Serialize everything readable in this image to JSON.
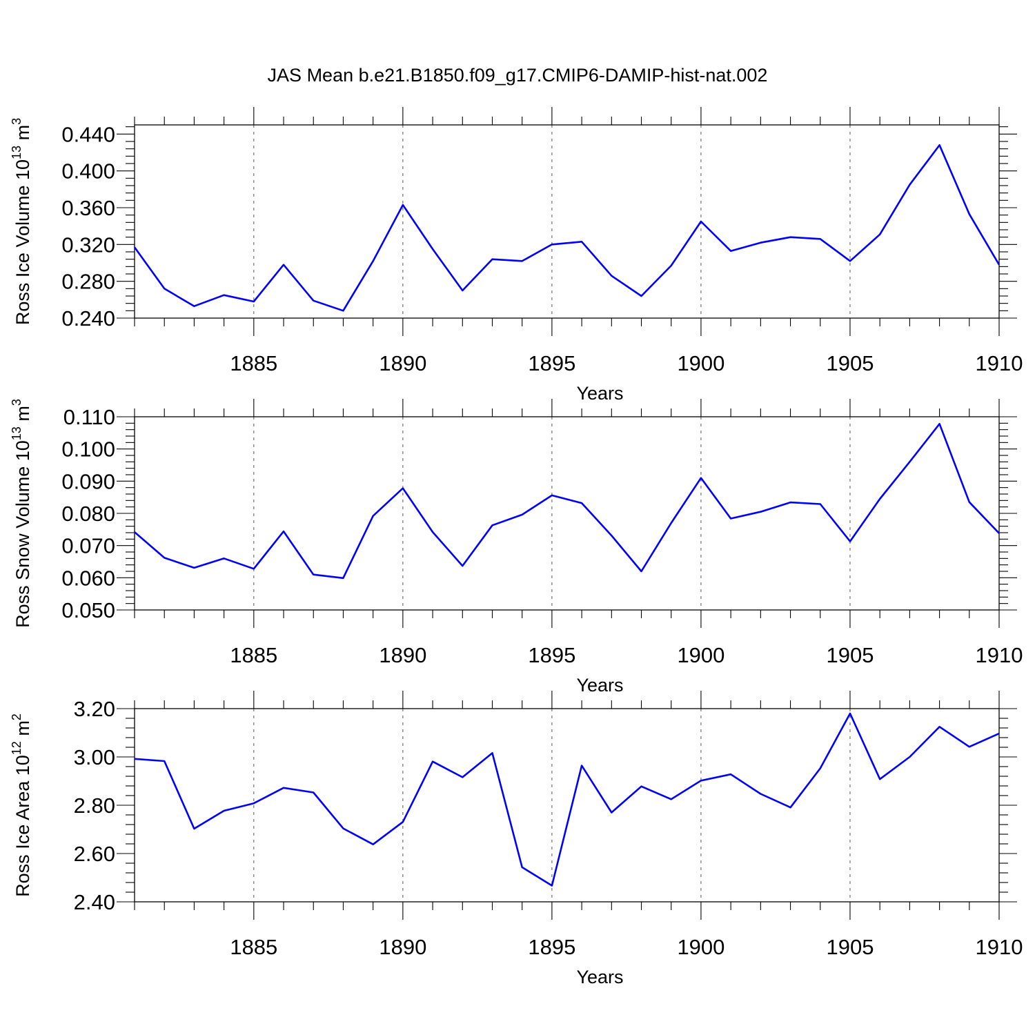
{
  "title": "JAS Mean b.e21.B1850.f09_g17.CMIP6-DAMIP-hist-nat.002",
  "colors": {
    "line": "#0000ff",
    "axis": "#000000"
  },
  "chart_data": [
    {
      "type": "line",
      "xlabel": "Years",
      "ylabel": "Ross Ice Volume 10",
      "ylabel_exp": "13",
      "ylabel_unit": " m",
      "ylabel_unit_exp": "3",
      "xlim": [
        1881,
        1910
      ],
      "ylim": [
        0.24,
        0.45
      ],
      "ytick_labels": [
        "0.240",
        "0.280",
        "0.320",
        "0.360",
        "0.400",
        "0.440"
      ],
      "xtick_labels": [
        "1885",
        "1890",
        "1895",
        "1900",
        "1905",
        "1910"
      ],
      "grid": "dashed vertical at major x ticks",
      "x": [
        1881,
        1882,
        1883,
        1884,
        1885,
        1886,
        1887,
        1888,
        1889,
        1890,
        1891,
        1892,
        1893,
        1894,
        1895,
        1896,
        1897,
        1898,
        1899,
        1900,
        1901,
        1902,
        1903,
        1904,
        1905,
        1906,
        1907,
        1908,
        1909,
        1910
      ],
      "series": [
        {
          "values": [
            0.317,
            0.272,
            0.253,
            0.265,
            0.258,
            0.298,
            0.259,
            0.248,
            0.302,
            0.363,
            0.315,
            0.27,
            0.304,
            0.302,
            0.32,
            0.323,
            0.286,
            0.264,
            0.297,
            0.345,
            0.313,
            0.322,
            0.328,
            0.326,
            0.302,
            0.331,
            0.385,
            0.428,
            0.353,
            0.298
          ]
        }
      ]
    },
    {
      "type": "line",
      "xlabel": "Years",
      "ylabel": "Ross Snow Volume 10",
      "ylabel_exp": "13",
      "ylabel_unit": " m",
      "ylabel_unit_exp": "3",
      "xlim": [
        1881,
        1910
      ],
      "ylim": [
        0.05,
        0.11
      ],
      "ytick_labels": [
        "0.050",
        "0.060",
        "0.070",
        "0.080",
        "0.090",
        "0.100",
        "0.110"
      ],
      "xtick_labels": [
        "1885",
        "1890",
        "1895",
        "1900",
        "1905",
        "1910"
      ],
      "grid": "dashed vertical at major x ticks",
      "x": [
        1881,
        1882,
        1883,
        1884,
        1885,
        1886,
        1887,
        1888,
        1889,
        1890,
        1891,
        1892,
        1893,
        1894,
        1895,
        1896,
        1897,
        1898,
        1899,
        1900,
        1901,
        1902,
        1903,
        1904,
        1905,
        1906,
        1907,
        1908,
        1909,
        1910
      ],
      "series": [
        {
          "values": [
            0.0742,
            0.0662,
            0.0631,
            0.066,
            0.0628,
            0.0744,
            0.061,
            0.0599,
            0.0792,
            0.0878,
            0.0742,
            0.0637,
            0.0763,
            0.0796,
            0.0856,
            0.0832,
            0.0731,
            0.062,
            0.077,
            0.091,
            0.0784,
            0.0805,
            0.0834,
            0.0829,
            0.0713,
            0.0845,
            0.096,
            0.1078,
            0.0835,
            0.0738
          ]
        }
      ]
    },
    {
      "type": "line",
      "xlabel": "Years",
      "ylabel": "Ross Ice Area 10",
      "ylabel_exp": "12",
      "ylabel_unit": " m",
      "ylabel_unit_exp": "2",
      "xlim": [
        1881,
        1910
      ],
      "ylim": [
        2.4,
        3.2
      ],
      "ytick_labels": [
        "2.40",
        "2.60",
        "2.80",
        "3.00",
        "3.20"
      ],
      "xtick_labels": [
        "1885",
        "1890",
        "1895",
        "1900",
        "1905",
        "1910"
      ],
      "grid": "dashed vertical at major x ticks",
      "x": [
        1881,
        1882,
        1883,
        1884,
        1885,
        1886,
        1887,
        1888,
        1889,
        1890,
        1891,
        1892,
        1893,
        1894,
        1895,
        1896,
        1897,
        1898,
        1899,
        1900,
        1901,
        1902,
        1903,
        1904,
        1905,
        1906,
        1907,
        1908,
        1909,
        1910
      ],
      "series": [
        {
          "values": [
            2.992,
            2.983,
            2.703,
            2.777,
            2.808,
            2.872,
            2.853,
            2.704,
            2.638,
            2.731,
            2.981,
            2.916,
            3.016,
            2.543,
            2.467,
            2.964,
            2.77,
            2.878,
            2.825,
            2.902,
            2.928,
            2.847,
            2.791,
            2.953,
            3.18,
            2.908,
            3.0,
            3.125,
            3.042,
            3.097
          ]
        }
      ]
    }
  ]
}
